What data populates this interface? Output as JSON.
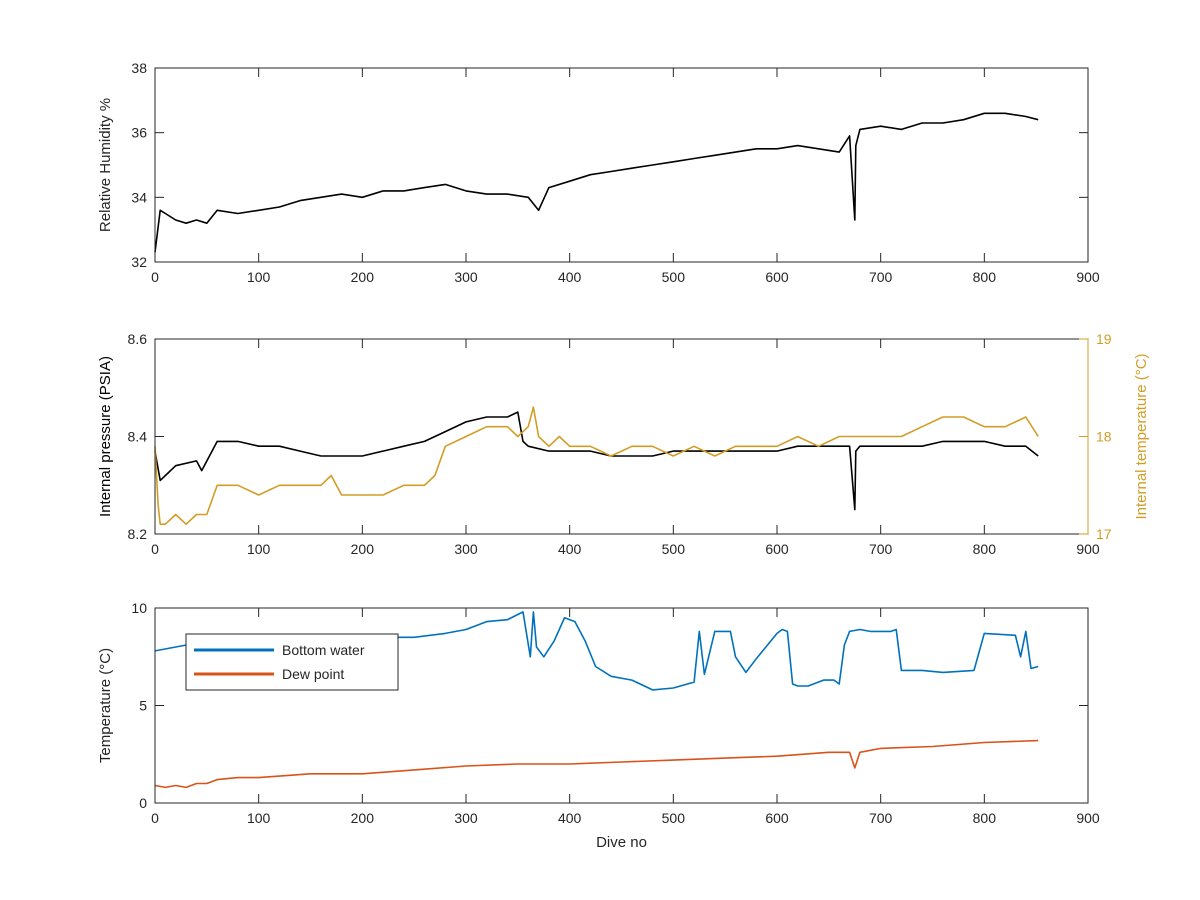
{
  "chart_data": [
    {
      "type": "line",
      "title": "",
      "xlabel": "",
      "ylabel": "Relative Humidity %",
      "xlim": [
        0,
        900
      ],
      "ylim": [
        32,
        38
      ],
      "xticks": [
        "0",
        "100",
        "200",
        "300",
        "400",
        "500",
        "600",
        "700",
        "800",
        "900"
      ],
      "yticks": [
        "32",
        "34",
        "36",
        "38"
      ],
      "grid": false,
      "series": [
        {
          "color": "#000000",
          "x": [
            0,
            5,
            10,
            20,
            30,
            40,
            50,
            60,
            80,
            100,
            120,
            140,
            160,
            180,
            200,
            220,
            240,
            260,
            280,
            300,
            320,
            340,
            360,
            370,
            380,
            400,
            420,
            440,
            460,
            480,
            500,
            520,
            540,
            560,
            580,
            600,
            620,
            640,
            660,
            670,
            675,
            676,
            680,
            700,
            720,
            740,
            760,
            780,
            800,
            820,
            840,
            852
          ],
          "y": [
            32.3,
            33.6,
            33.5,
            33.3,
            33.2,
            33.3,
            33.2,
            33.6,
            33.5,
            33.6,
            33.7,
            33.9,
            34.0,
            34.1,
            34.0,
            34.2,
            34.2,
            34.3,
            34.4,
            34.2,
            34.1,
            34.1,
            34.0,
            33.6,
            34.3,
            34.5,
            34.7,
            34.8,
            34.9,
            35.0,
            35.1,
            35.2,
            35.3,
            35.4,
            35.5,
            35.5,
            35.6,
            35.5,
            35.4,
            35.9,
            33.3,
            35.6,
            36.1,
            36.2,
            36.1,
            36.3,
            36.3,
            36.4,
            36.6,
            36.6,
            36.5,
            36.4
          ]
        }
      ]
    },
    {
      "type": "line",
      "title": "",
      "xlabel": "",
      "ylabel": "Internal pressure (PSIA)",
      "y2label": "Internal temperature (°C)",
      "xlim": [
        0,
        900
      ],
      "ylim": [
        8.2,
        8.6
      ],
      "y2lim": [
        17,
        19
      ],
      "xticks": [
        "0",
        "100",
        "200",
        "300",
        "400",
        "500",
        "600",
        "700",
        "800",
        "900"
      ],
      "yticks": [
        "8.2",
        "8.4",
        "8.6"
      ],
      "y2ticks": [
        "17",
        "18",
        "19"
      ],
      "grid": false,
      "series": [
        {
          "axis": "left",
          "color": "#000000",
          "x": [
            0,
            5,
            10,
            20,
            40,
            45,
            60,
            80,
            100,
            120,
            140,
            160,
            180,
            200,
            220,
            240,
            260,
            280,
            300,
            320,
            340,
            350,
            355,
            360,
            380,
            400,
            420,
            440,
            460,
            480,
            500,
            520,
            540,
            560,
            580,
            600,
            620,
            640,
            660,
            670,
            675,
            676,
            680,
            700,
            720,
            740,
            760,
            780,
            800,
            820,
            840,
            852
          ],
          "y": [
            8.37,
            8.31,
            8.32,
            8.34,
            8.35,
            8.33,
            8.39,
            8.39,
            8.38,
            8.38,
            8.37,
            8.36,
            8.36,
            8.36,
            8.37,
            8.38,
            8.39,
            8.41,
            8.43,
            8.44,
            8.44,
            8.45,
            8.39,
            8.38,
            8.37,
            8.37,
            8.37,
            8.36,
            8.36,
            8.36,
            8.37,
            8.37,
            8.37,
            8.37,
            8.37,
            8.37,
            8.38,
            8.38,
            8.38,
            8.38,
            8.25,
            8.37,
            8.38,
            8.38,
            8.38,
            8.38,
            8.39,
            8.39,
            8.39,
            8.38,
            8.38,
            8.36
          ]
        },
        {
          "axis": "right",
          "color": "#d29d25",
          "x": [
            0,
            3,
            5,
            10,
            20,
            30,
            40,
            50,
            60,
            80,
            100,
            120,
            140,
            160,
            170,
            180,
            200,
            220,
            240,
            260,
            270,
            280,
            300,
            320,
            340,
            350,
            360,
            365,
            370,
            380,
            390,
            400,
            420,
            440,
            460,
            480,
            500,
            520,
            540,
            560,
            580,
            600,
            620,
            640,
            660,
            680,
            700,
            720,
            740,
            760,
            780,
            800,
            820,
            840,
            852
          ],
          "y": [
            17.9,
            17.3,
            17.1,
            17.1,
            17.2,
            17.1,
            17.2,
            17.2,
            17.5,
            17.5,
            17.4,
            17.5,
            17.5,
            17.5,
            17.6,
            17.4,
            17.4,
            17.4,
            17.5,
            17.5,
            17.6,
            17.9,
            18.0,
            18.1,
            18.1,
            18.0,
            18.1,
            18.3,
            18.0,
            17.9,
            18.0,
            17.9,
            17.9,
            17.8,
            17.9,
            17.9,
            17.8,
            17.9,
            17.8,
            17.9,
            17.9,
            17.9,
            18.0,
            17.9,
            18.0,
            18.0,
            18.0,
            18.0,
            18.1,
            18.2,
            18.2,
            18.1,
            18.1,
            18.2,
            18.0
          ]
        }
      ]
    },
    {
      "type": "line",
      "title": "",
      "xlabel": "Dive no",
      "ylabel": "Temperature (°C)",
      "xlim": [
        0,
        900
      ],
      "ylim": [
        0,
        10
      ],
      "xticks": [
        "0",
        "100",
        "200",
        "300",
        "400",
        "500",
        "600",
        "700",
        "800",
        "900"
      ],
      "yticks": [
        "0",
        "5",
        "10"
      ],
      "grid": false,
      "legend": "top-left",
      "series": [
        {
          "name": "Bottom water",
          "color": "#0072bd",
          "x": [
            0,
            20,
            40,
            60,
            80,
            100,
            150,
            200,
            250,
            280,
            300,
            320,
            340,
            355,
            362,
            365,
            368,
            375,
            385,
            395,
            405,
            415,
            425,
            440,
            460,
            480,
            500,
            520,
            525,
            530,
            540,
            555,
            560,
            570,
            580,
            600,
            605,
            610,
            615,
            620,
            630,
            645,
            655,
            660,
            665,
            670,
            680,
            690,
            700,
            710,
            715,
            720,
            740,
            760,
            790,
            800,
            830,
            835,
            840,
            845,
            852
          ],
          "y": [
            7.8,
            8.0,
            8.2,
            8.5,
            8.6,
            8.5,
            8.5,
            8.5,
            8.5,
            8.7,
            8.9,
            9.3,
            9.4,
            9.8,
            7.5,
            9.8,
            8.0,
            7.5,
            8.3,
            9.5,
            9.3,
            8.3,
            7.0,
            6.5,
            6.3,
            5.8,
            5.9,
            6.2,
            8.8,
            6.6,
            8.8,
            8.8,
            7.5,
            6.7,
            7.4,
            8.7,
            8.9,
            8.8,
            6.1,
            6.0,
            6.0,
            6.3,
            6.3,
            6.1,
            8.1,
            8.8,
            8.9,
            8.8,
            8.8,
            8.8,
            8.9,
            6.8,
            6.8,
            6.7,
            6.8,
            8.7,
            8.6,
            7.5,
            8.8,
            6.9,
            7.0
          ]
        },
        {
          "name": "Dew point",
          "color": "#d95319",
          "x": [
            0,
            10,
            20,
            30,
            40,
            50,
            60,
            80,
            100,
            150,
            200,
            250,
            300,
            350,
            400,
            450,
            500,
            550,
            600,
            650,
            670,
            675,
            680,
            700,
            750,
            800,
            852
          ],
          "y": [
            0.9,
            0.8,
            0.9,
            0.8,
            1.0,
            1.0,
            1.2,
            1.3,
            1.3,
            1.5,
            1.5,
            1.7,
            1.9,
            2.0,
            2.0,
            2.1,
            2.2,
            2.3,
            2.4,
            2.6,
            2.6,
            1.8,
            2.6,
            2.8,
            2.9,
            3.1,
            3.2
          ]
        }
      ]
    }
  ]
}
